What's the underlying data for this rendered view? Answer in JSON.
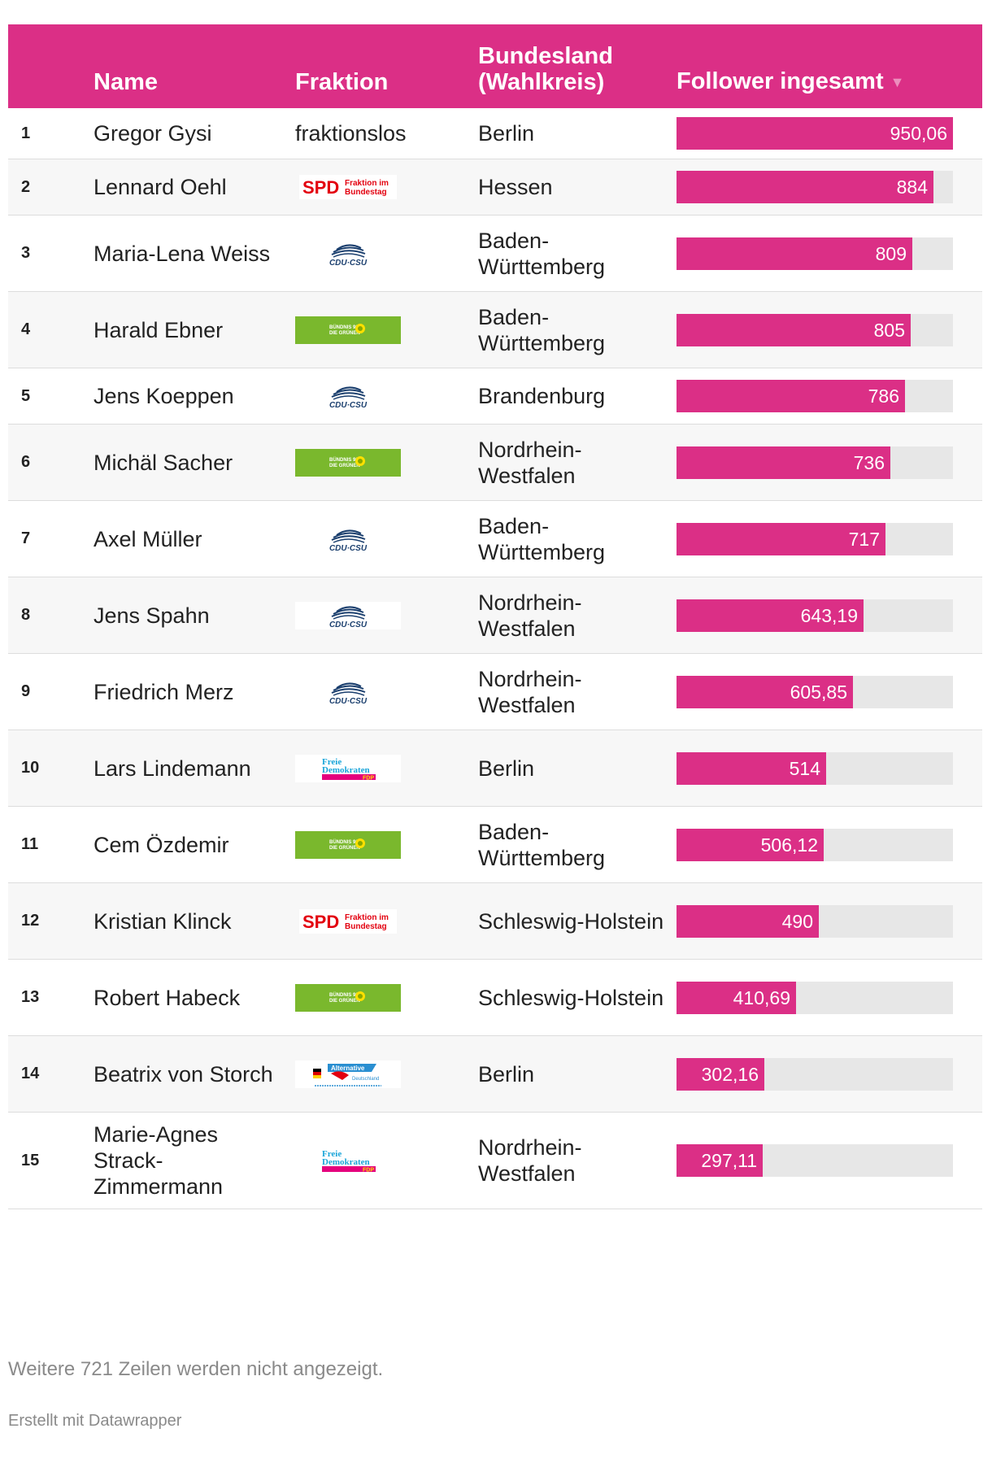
{
  "chart_data": {
    "type": "table",
    "columns": {
      "rank": "",
      "name": "Name",
      "fraktion": "Fraktion",
      "bundesland": "Bundesland (Wahlkreis)",
      "follower": "Follower ingesamt"
    },
    "sort_indicator": "▼",
    "max_value": 950.06,
    "rows": [
      {
        "rank": "1",
        "name": "Gregor Gysi",
        "fraktion_text": "fraktionslos",
        "fraktion_logo": "",
        "bundesland": "Berlin",
        "value": 950.06,
        "value_label": "950,06"
      },
      {
        "rank": "2",
        "name": "Lennard Oehl",
        "fraktion_text": "",
        "fraktion_logo": "spd",
        "bundesland": "Hessen",
        "value": 884,
        "value_label": "884"
      },
      {
        "rank": "3",
        "name": "Maria-Lena Weiss",
        "fraktion_text": "",
        "fraktion_logo": "cdu",
        "bundesland": "Baden-Württemberg",
        "value": 809,
        "value_label": "809"
      },
      {
        "rank": "4",
        "name": "Harald Ebner",
        "fraktion_text": "",
        "fraktion_logo": "gruene",
        "bundesland": "Baden-Württemberg",
        "value": 805,
        "value_label": "805"
      },
      {
        "rank": "5",
        "name": "Jens Koeppen",
        "fraktion_text": "",
        "fraktion_logo": "cdu",
        "bundesland": "Brandenburg",
        "value": 786,
        "value_label": "786"
      },
      {
        "rank": "6",
        "name": "Michäl Sacher",
        "fraktion_text": "",
        "fraktion_logo": "gruene",
        "bundesland": "Nordrhein-Westfalen",
        "value": 736,
        "value_label": "736"
      },
      {
        "rank": "7",
        "name": "Axel Müller",
        "fraktion_text": "",
        "fraktion_logo": "cdu",
        "bundesland": "Baden-Württemberg",
        "value": 717,
        "value_label": "717"
      },
      {
        "rank": "8",
        "name": "Jens Spahn",
        "fraktion_text": "",
        "fraktion_logo": "cdu",
        "bundesland": "Nordrhein-Westfalen",
        "value": 643.19,
        "value_label": "643,19"
      },
      {
        "rank": "9",
        "name": "Friedrich Merz",
        "fraktion_text": "",
        "fraktion_logo": "cdu",
        "bundesland": "Nordrhein-Westfalen",
        "value": 605.85,
        "value_label": "605,85"
      },
      {
        "rank": "10",
        "name": "Lars Lindemann",
        "fraktion_text": "",
        "fraktion_logo": "fdp",
        "bundesland": "Berlin",
        "value": 514,
        "value_label": "514"
      },
      {
        "rank": "11",
        "name": "Cem Özdemir",
        "fraktion_text": "",
        "fraktion_logo": "gruene",
        "bundesland": "Baden-Württemberg",
        "value": 506.12,
        "value_label": "506,12"
      },
      {
        "rank": "12",
        "name": "Kristian Klinck",
        "fraktion_text": "",
        "fraktion_logo": "spd",
        "bundesland": "Schleswig-Holstein",
        "value": 490,
        "value_label": "490"
      },
      {
        "rank": "13",
        "name": "Robert Habeck",
        "fraktion_text": "",
        "fraktion_logo": "gruene",
        "bundesland": "Schleswig-Holstein",
        "value": 410.69,
        "value_label": "410,69"
      },
      {
        "rank": "14",
        "name": "Beatrix von Storch",
        "fraktion_text": "",
        "fraktion_logo": "afd",
        "bundesland": "Berlin",
        "value": 302.16,
        "value_label": "302,16"
      },
      {
        "rank": "15",
        "name": "Marie-Agnes Strack-Zimmermann",
        "fraktion_text": "",
        "fraktion_logo": "fdp",
        "bundesland": "Nordrhein-Westfalen",
        "value": 297.11,
        "value_label": "297,11"
      }
    ],
    "logos": {
      "spd": {
        "text": "SPD",
        "sub1": "Fraktion im",
        "sub2": "Bundestag"
      },
      "cdu": {
        "text": "CDU·CSU"
      },
      "gruene": {
        "text1": "BÜNDNIS 90",
        "text2": "DIE GRÜNEN"
      },
      "fdp": {
        "text1": "Freie",
        "text2": "Demokraten",
        "text3": "FDP"
      },
      "afd": {
        "text1": "Alternative",
        "text2": "Deutschland"
      }
    }
  },
  "colors": {
    "accent": "#db2f86",
    "track": "#e7e7e7",
    "gruene": "#7ab82d",
    "cdu": "#1b3f6e",
    "spd": "#e3000f",
    "fdp_blue": "#1aa5d9",
    "fdp_magenta": "#e5007d",
    "afd": "#2a8fd1"
  },
  "footer": {
    "note": "Weitere 721 Zeilen werden nicht angezeigt.",
    "credit": "Erstellt mit Datawrapper"
  }
}
